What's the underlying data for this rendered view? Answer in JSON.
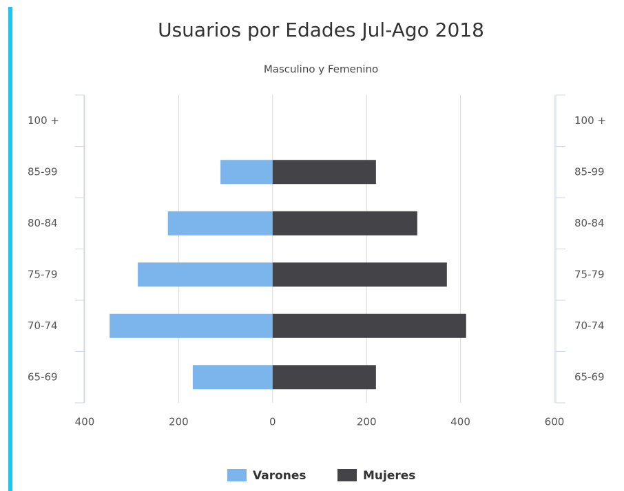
{
  "chart_data": {
    "type": "bar",
    "orientation": "horizontal",
    "title": "Usuarios por Edades Jul-Ago 2018",
    "subtitle": "Masculino y Femenino",
    "categories": [
      "100 +",
      "85-99",
      "80-84",
      "75-79",
      "70-74",
      "65-69"
    ],
    "series": [
      {
        "name": "Varones",
        "color": "#7cb5ec",
        "values": [
          0,
          -111,
          -223,
          -287,
          -347,
          -170
        ]
      },
      {
        "name": "Mujeres",
        "color": "#434348",
        "values": [
          0,
          220,
          308,
          371,
          412,
          220
        ]
      }
    ],
    "xlim": [
      -400,
      600
    ],
    "xticks": [
      {
        "value": -400,
        "label": "400"
      },
      {
        "value": -200,
        "label": "200"
      },
      0,
      200,
      400,
      600
    ],
    "grid": true,
    "legend": "bottom"
  }
}
